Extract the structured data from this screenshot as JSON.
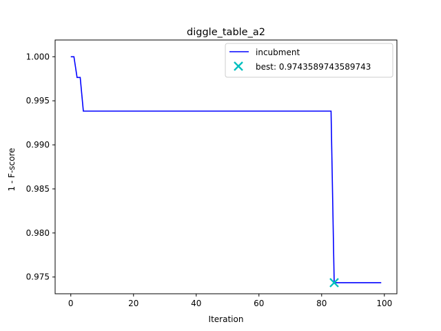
{
  "chart_data": {
    "type": "line",
    "title": "diggle_table_a2",
    "xlabel": "Iteration",
    "ylabel": "1 - F-score",
    "xlim": [
      -5,
      104
    ],
    "ylim": [
      0.9731,
      1.0019
    ],
    "xticks": [
      0,
      20,
      40,
      60,
      80,
      100
    ],
    "xtick_labels": [
      "0",
      "20",
      "40",
      "60",
      "80",
      "100"
    ],
    "yticks": [
      0.975,
      0.98,
      0.985,
      0.99,
      0.995,
      1.0
    ],
    "ytick_labels": [
      "0.975",
      "0.980",
      "0.985",
      "0.990",
      "0.995",
      "1.000"
    ],
    "grid": false,
    "legend_position": "top-right",
    "series": [
      {
        "name": "incubment",
        "color": "#0000ff",
        "x": [
          0,
          1,
          2,
          3,
          4,
          83,
          84,
          99
        ],
        "y": [
          1.0,
          1.0,
          0.99765,
          0.99765,
          0.99383,
          0.99383,
          0.97436,
          0.97436
        ]
      }
    ],
    "best_point": {
      "label": "best: 0.9743589743589743",
      "x": 84,
      "y": 0.9743589743589743,
      "color": "#00bfbf",
      "marker": "x-marker"
    }
  }
}
